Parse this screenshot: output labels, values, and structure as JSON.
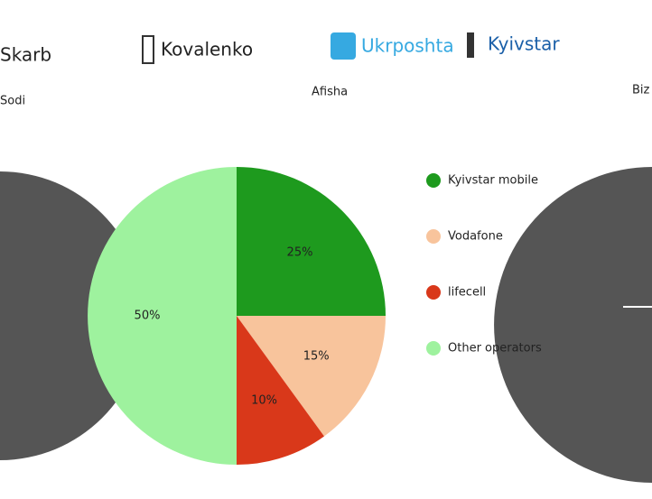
{
  "header": {
    "left": "Skarb",
    "logo1": "Kovalenko",
    "logo2": "Ukrposhta",
    "logo3": "Kyivstar",
    "sub1": "Sodi",
    "sub2": "Afisha",
    "sub3": "Biz"
  },
  "chart_data": {
    "type": "pie",
    "categories": [
      "Kyivstar mobile",
      "Vodafone",
      "lifecell",
      "Other operators"
    ],
    "values": [
      25,
      15,
      10,
      50
    ],
    "value_labels": [
      "25%",
      "15%",
      "10%",
      "50%"
    ],
    "colors": [
      "#1e9a1e",
      "#f8c49c",
      "#d9381a",
      "#9ef29e"
    ],
    "legend": "right"
  }
}
